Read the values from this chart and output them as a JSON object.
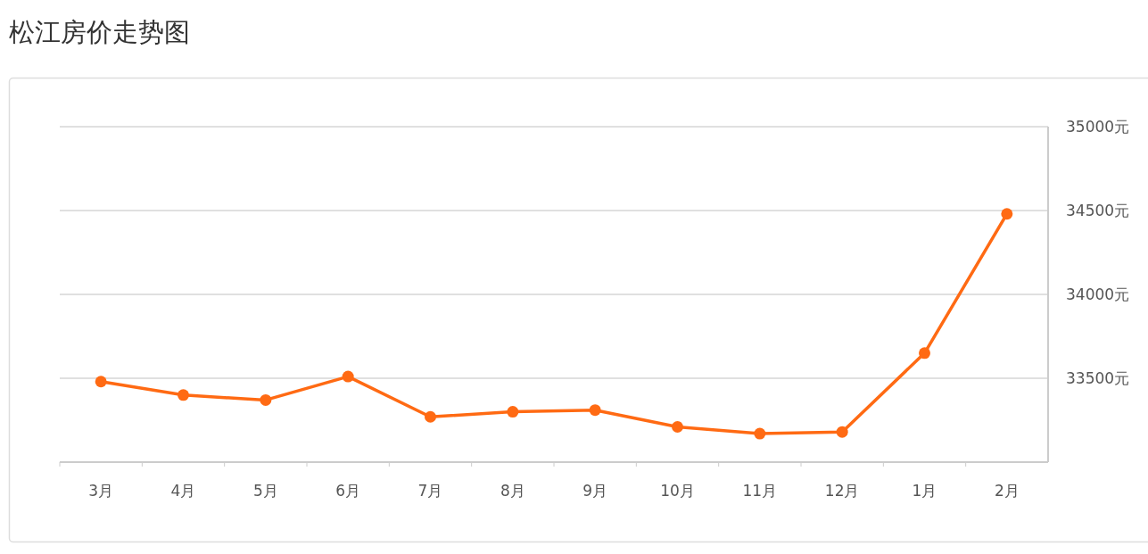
{
  "chart_data": {
    "type": "line",
    "title": "松江房价走势图",
    "categories": [
      "3月",
      "4月",
      "5月",
      "6月",
      "7月",
      "8月",
      "9月",
      "10月",
      "11月",
      "12月",
      "1月",
      "2月"
    ],
    "values": [
      33480,
      33400,
      33370,
      33510,
      33270,
      33300,
      33310,
      33210,
      33170,
      33180,
      33650,
      34480
    ],
    "color": "#ff6a13",
    "marker": "circle",
    "grid": "y",
    "ylim": [
      33000,
      35000
    ],
    "yticks": [
      {
        "value": 33500,
        "label": "33500元"
      },
      {
        "value": 34000,
        "label": "34000元"
      },
      {
        "value": 34500,
        "label": "34500元"
      },
      {
        "value": 35000,
        "label": "35000元"
      }
    ]
  }
}
